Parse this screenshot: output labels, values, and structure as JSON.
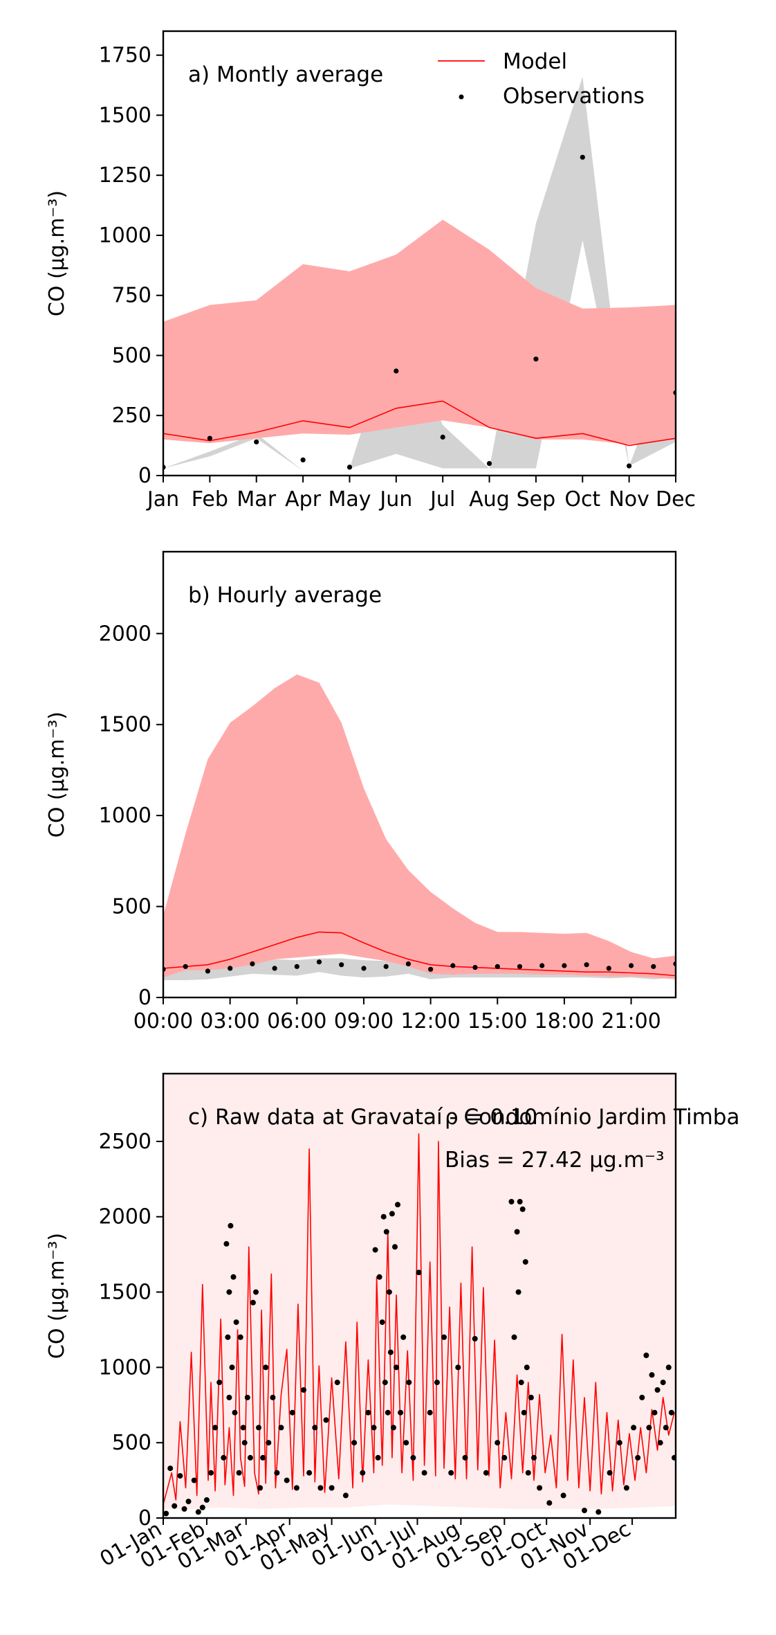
{
  "colors": {
    "model": "#ff0000",
    "model_band": "#ffaaaa",
    "obs_band": "#d3d3d3",
    "observations": "#000000"
  },
  "chart_data": [
    {
      "type": "line",
      "panel_label": "a) Montly average",
      "ylabel": "CO (μg.m⁻³)",
      "ylim": [
        0,
        1850
      ],
      "yticks": [
        0,
        250,
        500,
        750,
        1000,
        1250,
        1500,
        1750
      ],
      "categories": [
        "Jan",
        "Feb",
        "Mar",
        "Apr",
        "May",
        "Jun",
        "Jul",
        "Aug",
        "Sep",
        "Oct",
        "Nov",
        "Dec"
      ],
      "legend": {
        "placement": "top-right",
        "entries": [
          "Model",
          "Observations"
        ]
      },
      "series": [
        {
          "name": "Model",
          "kind": "line",
          "values": [
            175,
            145,
            180,
            228,
            200,
            280,
            310,
            200,
            155,
            175,
            125,
            155
          ]
        },
        {
          "name": "Observations",
          "kind": "scatter",
          "values": [
            35,
            155,
            140,
            65,
            35,
            435,
            160,
            50,
            485,
            1325,
            40,
            345
          ]
        }
      ],
      "bands": [
        {
          "of": "Observations",
          "lower": [
            30,
            80,
            155,
            20,
            30,
            90,
            30,
            30,
            30,
            980,
            40,
            140
          ],
          "upper": [
            30,
            100,
            175,
            20,
            30,
            640,
            210,
            30,
            1050,
            1660,
            40,
            540
          ]
        },
        {
          "of": "Model",
          "lower": [
            150,
            135,
            155,
            175,
            170,
            200,
            230,
            200,
            150,
            150,
            130,
            150
          ],
          "upper": [
            640,
            710,
            730,
            880,
            850,
            920,
            1065,
            940,
            780,
            695,
            700,
            710
          ]
        }
      ]
    },
    {
      "type": "line",
      "panel_label": "b) Hourly average",
      "ylabel": "CO (μg.m⁻³)",
      "ylim": [
        0,
        2450
      ],
      "yticks": [
        0,
        500,
        1000,
        1500,
        2000
      ],
      "xlim": [
        0,
        23
      ],
      "x": [
        0,
        1,
        2,
        3,
        4,
        5,
        6,
        7,
        8,
        9,
        10,
        11,
        12,
        13,
        14,
        15,
        16,
        17,
        18,
        19,
        20,
        21,
        22,
        23
      ],
      "x_tick_values": [
        0,
        3,
        6,
        9,
        12,
        15,
        18,
        21
      ],
      "x_tick_labels": [
        "00:00",
        "03:00",
        "06:00",
        "09:00",
        "12:00",
        "15:00",
        "18:00",
        "21:00"
      ],
      "series": [
        {
          "name": "Model",
          "kind": "line",
          "values": [
            160,
            170,
            180,
            210,
            250,
            290,
            330,
            360,
            355,
            300,
            250,
            210,
            180,
            170,
            165,
            160,
            155,
            150,
            145,
            140,
            140,
            135,
            130,
            120
          ]
        },
        {
          "name": "Observations",
          "kind": "scatter",
          "values": [
            155,
            170,
            145,
            160,
            185,
            160,
            170,
            195,
            180,
            160,
            170,
            185,
            155,
            175,
            165,
            170,
            170,
            175,
            175,
            180,
            160,
            175,
            170,
            185
          ]
        }
      ],
      "bands": [
        {
          "of": "Observations",
          "lower": [
            95,
            95,
            100,
            115,
            130,
            125,
            120,
            140,
            120,
            110,
            115,
            130,
            100,
            110,
            110,
            110,
            110,
            110,
            110,
            110,
            105,
            110,
            100,
            110
          ],
          "upper": [
            160,
            170,
            150,
            175,
            200,
            210,
            205,
            215,
            215,
            205,
            200,
            195,
            170,
            190,
            185,
            185,
            185,
            190,
            190,
            190,
            180,
            190,
            180,
            190
          ]
        },
        {
          "of": "Model",
          "lower": [
            110,
            150,
            150,
            160,
            180,
            210,
            220,
            230,
            240,
            220,
            200,
            170,
            130,
            125,
            130,
            130,
            130,
            125,
            125,
            120,
            115,
            115,
            110,
            100
          ],
          "upper": [
            450,
            900,
            1310,
            1510,
            1600,
            1700,
            1775,
            1730,
            1510,
            1150,
            870,
            700,
            580,
            490,
            410,
            360,
            360,
            355,
            350,
            355,
            310,
            250,
            215,
            230
          ]
        }
      ]
    },
    {
      "type": "line",
      "panel_label": "c) Raw data at Gravataí - Condomínio Jardim Timba",
      "annotations": [
        "ρ = 0.10",
        "Bias = 27.42 μg.m⁻³"
      ],
      "ylabel": "CO (μg.m⁻³)",
      "ylim": [
        0,
        2950
      ],
      "yticks": [
        0,
        500,
        1000,
        1500,
        2000,
        2500
      ],
      "xlim": [
        0,
        365
      ],
      "x_tick_values": [
        0,
        31,
        59,
        90,
        120,
        151,
        181,
        212,
        243,
        273,
        304,
        334
      ],
      "x_tick_labels": [
        "01-Jan",
        "01-Feb",
        "01-Mar",
        "01-Apr",
        "01-May",
        "01-Jun",
        "01-Jul",
        "01-Aug",
        "01-Sep",
        "01-Oct",
        "01-Nov",
        "01-Dec"
      ],
      "series": [
        {
          "name": "Model",
          "kind": "line",
          "x": [
            0,
            6,
            9,
            12,
            16,
            20,
            24,
            28,
            32,
            34,
            37,
            41,
            44,
            47,
            50,
            53,
            55,
            58,
            61,
            65,
            68,
            70,
            73,
            77,
            80,
            84,
            88,
            92,
            96,
            100,
            104,
            108,
            111,
            115,
            120,
            125,
            130,
            135,
            138,
            142,
            146,
            150,
            152,
            156,
            160,
            163,
            166,
            170,
            174,
            178,
            182,
            186,
            190,
            194,
            196,
            200,
            204,
            208,
            212,
            216,
            220,
            224,
            228,
            232,
            236,
            240,
            244,
            248,
            252,
            256,
            260,
            264,
            268,
            272,
            276,
            280,
            284,
            288,
            292,
            296,
            300,
            304,
            308,
            312,
            316,
            320,
            324,
            328,
            332,
            336,
            340,
            344,
            348,
            352,
            356,
            360,
            364
          ],
          "values": [
            90,
            300,
            120,
            640,
            200,
            1100,
            150,
            1550,
            250,
            900,
            180,
            1320,
            220,
            600,
            150,
            1250,
            400,
            210,
            1800,
            300,
            160,
            1380,
            230,
            1620,
            200,
            820,
            1120,
            190,
            1420,
            280,
            2450,
            240,
            1010,
            170,
            930,
            260,
            1170,
            200,
            1300,
            240,
            1050,
            300,
            1600,
            350,
            1900,
            400,
            1480,
            300,
            1110,
            250,
            2550,
            350,
            1700,
            280,
            2500,
            330,
            1400,
            260,
            1560,
            260,
            1800,
            320,
            1530,
            280,
            1180,
            200,
            700,
            260,
            950,
            300,
            900,
            250,
            820,
            300,
            550,
            200,
            1220,
            250,
            1050,
            200,
            800,
            180,
            900,
            160,
            700,
            180,
            650,
            220,
            560,
            250,
            600,
            300,
            720,
            450,
            800,
            550,
            700
          ]
        },
        {
          "name": "Observations",
          "kind": "scatter",
          "x": [
            2,
            5,
            8,
            12,
            15,
            18,
            22,
            25,
            28,
            31,
            34,
            37,
            40,
            43,
            45,
            46,
            47,
            47,
            48,
            49,
            50,
            51,
            52,
            54,
            55,
            57,
            58,
            60,
            62,
            64,
            66,
            68,
            69,
            71,
            73,
            75,
            78,
            81,
            84,
            88,
            92,
            95,
            100,
            104,
            108,
            112,
            116,
            120,
            124,
            130,
            136,
            142,
            146,
            150,
            151,
            153,
            154,
            156,
            157,
            158,
            159,
            160,
            161,
            162,
            163,
            164,
            165,
            166,
            167,
            169,
            171,
            173,
            175,
            178,
            182,
            186,
            190,
            195,
            200,
            205,
            210,
            215,
            222,
            230,
            238,
            243,
            248,
            250,
            252,
            253,
            254,
            255,
            256,
            257,
            258,
            259,
            260,
            262,
            264,
            268,
            275,
            285,
            300,
            310,
            318,
            325,
            330,
            335,
            338,
            341,
            344,
            346,
            348,
            350,
            352,
            354,
            356,
            358,
            360,
            362,
            364
          ],
          "values": [
            30,
            330,
            80,
            280,
            60,
            110,
            250,
            40,
            70,
            120,
            300,
            600,
            900,
            400,
            1820,
            1200,
            1500,
            800,
            1940,
            1000,
            1600,
            700,
            1300,
            300,
            1200,
            600,
            500,
            800,
            400,
            1430,
            1500,
            600,
            200,
            400,
            1000,
            500,
            800,
            300,
            600,
            250,
            700,
            200,
            850,
            300,
            600,
            200,
            650,
            200,
            900,
            150,
            500,
            300,
            700,
            600,
            1780,
            400,
            1600,
            1300,
            2000,
            900,
            1900,
            700,
            1500,
            1100,
            2020,
            600,
            1800,
            1000,
            2080,
            700,
            1200,
            500,
            900,
            400,
            1630,
            300,
            700,
            900,
            1200,
            300,
            1000,
            400,
            1190,
            300,
            500,
            400,
            2100,
            1200,
            1900,
            1500,
            2100,
            900,
            2050,
            700,
            1700,
            1000,
            300,
            800,
            400,
            200,
            100,
            150,
            50,
            40,
            300,
            500,
            200,
            600,
            400,
            800,
            1080,
            600,
            950,
            700,
            850,
            500,
            900,
            600,
            1000,
            700,
            400
          ]
        }
      ],
      "bands": [
        {
          "of": "Model",
          "x": [
            0,
            20,
            45,
            70,
            100,
            130,
            160,
            190,
            220,
            250,
            280,
            310,
            340,
            365
          ],
          "lower": [
            60,
            60,
            70,
            60,
            70,
            70,
            90,
            80,
            70,
            60,
            60,
            60,
            70,
            80
          ],
          "upper": [
            2950,
            2950,
            2950,
            2950,
            2950,
            2950,
            2950,
            2950,
            2950,
            2950,
            2950,
            2950,
            2950,
            2950
          ]
        }
      ]
    }
  ]
}
